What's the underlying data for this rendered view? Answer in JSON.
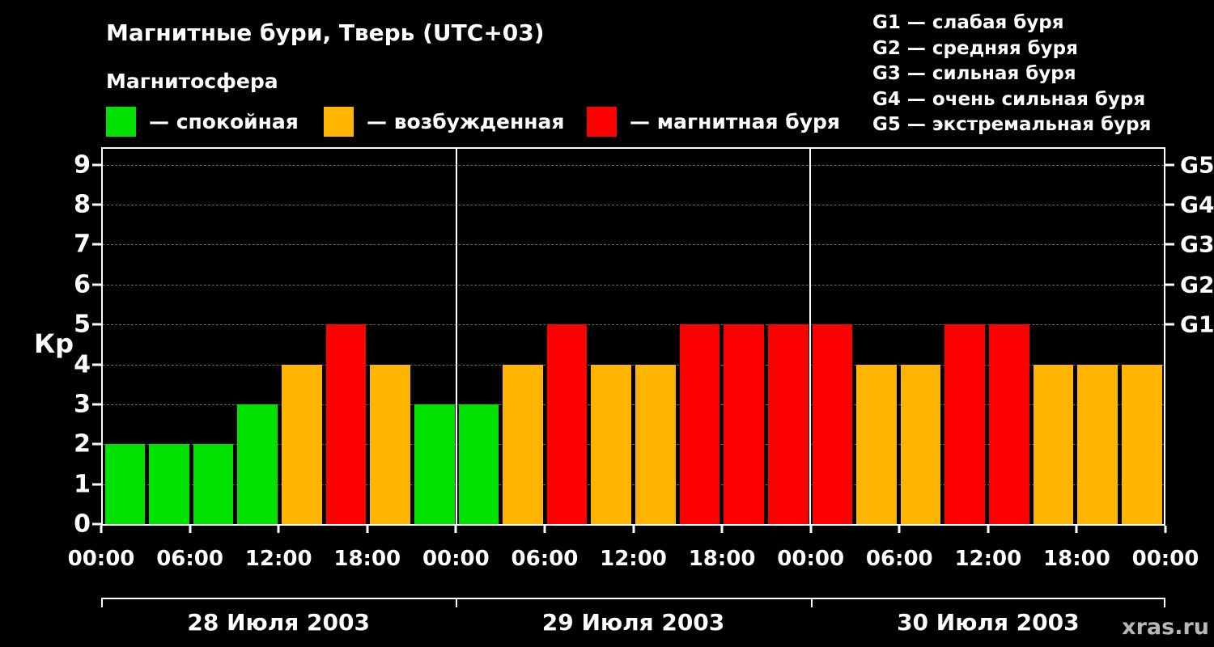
{
  "header": {
    "title": "Магнитные бури, Тверь (UTC+03)",
    "subtitle": "Магнитосфера"
  },
  "legend": [
    {
      "name": "quiet",
      "label": "— спокойная",
      "color": "#00e100"
    },
    {
      "name": "excited",
      "label": "— возбужденная",
      "color": "#ffb400"
    },
    {
      "name": "storm",
      "label": "— магнитная буря",
      "color": "#ff0000"
    }
  ],
  "storm_scale": [
    "G1 — слабая буря",
    "G2 — средняя буря",
    "G3 — сильная буря",
    "G4 — очень сильная буря",
    "G5 — экстремальная буря"
  ],
  "watermark": "xras.ru",
  "chart_data": {
    "type": "bar",
    "title": "Магнитные бури, Тверь (UTC+03)",
    "ylabel": "Кр",
    "ylim": [
      0,
      9.4
    ],
    "yticks": [
      0,
      1,
      2,
      3,
      4,
      5,
      6,
      7,
      8,
      9
    ],
    "grid": "horizontal dashed gray",
    "legend_position": "top",
    "bar_interval_hours": 3,
    "right_axis_labels": [
      {
        "value": 5,
        "label": "G1"
      },
      {
        "value": 6,
        "label": "G2"
      },
      {
        "value": 7,
        "label": "G3"
      },
      {
        "value": 8,
        "label": "G4"
      },
      {
        "value": 9,
        "label": "G5"
      }
    ],
    "x_time_labels": [
      "00:00",
      "06:00",
      "12:00",
      "18:00",
      "00:00",
      "06:00",
      "12:00",
      "18:00",
      "00:00",
      "06:00",
      "12:00",
      "18:00",
      "00:00"
    ],
    "color_rules": {
      "quiet_max_kp": 3,
      "excited_kp": 4,
      "storm_min_kp": 5
    },
    "days": [
      {
        "date": "28 Июля 2003",
        "values": [
          2,
          2,
          2,
          3,
          4,
          5,
          4,
          3
        ]
      },
      {
        "date": "29 Июля 2003",
        "values": [
          3,
          4,
          5,
          4,
          4,
          5,
          5,
          5
        ]
      },
      {
        "date": "30 Июля 2003",
        "values": [
          5,
          4,
          4,
          5,
          5,
          4,
          4,
          4
        ]
      }
    ]
  }
}
